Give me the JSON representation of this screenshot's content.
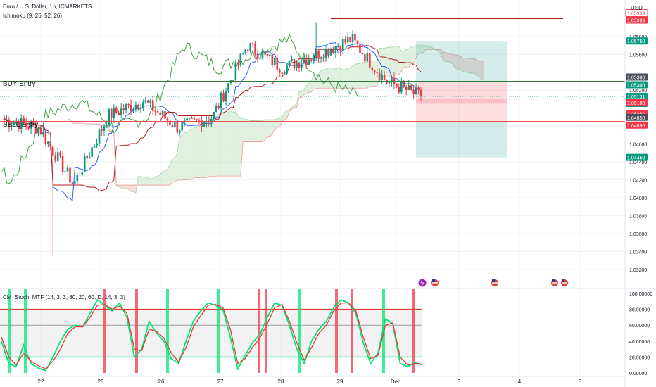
{
  "header": {
    "symbol_title": "Euro / U.S. Dollar, 1h, ICMARKETS",
    "indicator": "Ichimoku (9, 26, 52, 26)",
    "currency": "USD"
  },
  "annotations": {
    "buy_entry": "BUY Entry",
    "sell_entry": "SELL Entry"
  },
  "price_scale": {
    "ticks": [
      "1.05800",
      "1.05600",
      "1.05200",
      "1.04600",
      "1.04400",
      "1.04200",
      "1.04000",
      "1.03800",
      "1.03600",
      "1.03400",
      "1.03200"
    ],
    "badges": [
      {
        "text": "1.05999",
        "color": "#f7525f",
        "outline": true
      },
      {
        "text": "1.05999",
        "color": "#f23645"
      },
      {
        "text": "1.05750",
        "color": "#089981"
      },
      {
        "text": "1.05300",
        "color": "#4b4f5a"
      },
      {
        "text": "1.05300",
        "color": "#089981"
      },
      {
        "text": "1.05131",
        "color": "#089981"
      },
      {
        "text": "30:36",
        "color": "#089981"
      },
      {
        "text": "1.05100",
        "color": "#f23645"
      },
      {
        "text": "1.05050",
        "color": "#f23645"
      },
      {
        "text": "1.04850",
        "color": "#4b4f5a"
      },
      {
        "text": "1.04850",
        "color": "#f23645"
      },
      {
        "text": "1.04450",
        "color": "#089981"
      }
    ]
  },
  "time_axis": [
    "22",
    "25",
    "26",
    "27",
    "28",
    "29",
    "Dec",
    "3",
    "4",
    "5"
  ],
  "oscillator": {
    "title": "CM_Stoch_MTF (14, 3, 3, 80, 20, 60, D, 14, 3, 3)",
    "ticks": [
      "100.00000",
      "80.00000",
      "60.00000",
      "40.00000",
      "20.00000",
      "0.00000"
    ]
  },
  "colors": {
    "up": "#089981",
    "down": "#f23645",
    "tenkan": "#2962ff",
    "kijun": "#b71c1c",
    "chikou": "#43a047",
    "cloud_bull": "#a5d6a7",
    "cloud_bear": "#ef9a9a",
    "stoch_k": "#00e676",
    "stoch_d": "#e53935"
  },
  "chart_data": [
    {
      "type": "candlestick",
      "title": "Euro / U.S. Dollar, 1h, ICMARKETS",
      "ylabel": "USD",
      "ylim": [
        1.0312,
        1.0605
      ],
      "x_ticks": [
        "22",
        "25",
        "26",
        "27",
        "28",
        "29",
        "Dec",
        "3",
        "4",
        "5"
      ],
      "approx_close_path": [
        {
          "x": "22",
          "y": 1.0487
        },
        {
          "x": "22",
          "y": 1.0478
        },
        {
          "x": "25",
          "y": 1.0415
        },
        {
          "x": "25",
          "y": 1.0492
        },
        {
          "x": "26",
          "y": 1.0508
        },
        {
          "x": "26",
          "y": 1.0478
        },
        {
          "x": "27",
          "y": 1.049
        },
        {
          "x": "28",
          "y": 1.057
        },
        {
          "x": "28",
          "y": 1.0545
        },
        {
          "x": "29",
          "y": 1.056
        },
        {
          "x": "29",
          "y": 1.0577
        },
        {
          "x": "Dec",
          "y": 1.053
        },
        {
          "x": "Dec",
          "y": 1.0513
        }
      ],
      "lows_highs": {
        "low": 1.0335,
        "high": 1.0596
      },
      "horizontal_levels": [
        {
          "name": "BUY Entry",
          "y": 1.053
        },
        {
          "name": "SELL Entry",
          "y": 1.0485
        },
        {
          "name": "resistance",
          "y": 1.05999
        }
      ],
      "position_box": {
        "target_top": 1.0575,
        "entry": 1.053,
        "stop_low": 1.0505,
        "target_bottom": 1.0445
      },
      "last_price": 1.05131,
      "countdown": "30:36"
    },
    {
      "type": "line",
      "title": "CM_Stoch_MTF (14, 3, 3, 80, 20, 60, D, 14, 3, 3)",
      "ylim": [
        0,
        100
      ],
      "bands": [
        80,
        60,
        20
      ],
      "series": [
        {
          "values": [
            40,
            12,
            8,
            35,
            12,
            6,
            3,
            20,
            40,
            55,
            60,
            58,
            75,
            92,
            85,
            78,
            88,
            70,
            20,
            30,
            65,
            50,
            40,
            18,
            12,
            40,
            65,
            78,
            88,
            85,
            80,
            45,
            5,
            22,
            38,
            48,
            70,
            88,
            85,
            60,
            30,
            12,
            40,
            55,
            65,
            82,
            92,
            88,
            75,
            38,
            12,
            25,
            68,
            62,
            12,
            8,
            13,
            10
          ]
        },
        {
          "values": [
            45,
            20,
            10,
            25,
            15,
            9,
            5,
            15,
            30,
            50,
            58,
            58,
            70,
            85,
            86,
            80,
            84,
            75,
            30,
            28,
            55,
            52,
            44,
            25,
            14,
            32,
            58,
            72,
            85,
            86,
            82,
            55,
            12,
            18,
            32,
            44,
            62,
            82,
            86,
            65,
            38,
            16,
            32,
            50,
            60,
            78,
            88,
            88,
            78,
            45,
            18,
            22,
            60,
            63,
            20,
            10,
            12,
            11
          ]
        }
      ]
    }
  ]
}
